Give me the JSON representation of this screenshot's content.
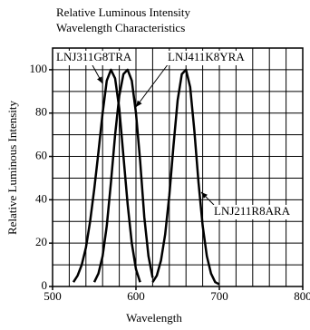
{
  "chart_data": {
    "type": "line",
    "title": "Relative Luminous Intensity",
    "subtitle": "Wavelength Characteristics",
    "x_label": "Wavelength",
    "y_label": "Relative Luminous Intensity",
    "xlim": [
      500,
      800
    ],
    "ylim": [
      0,
      110
    ],
    "xticks": [
      500,
      600,
      700,
      800
    ],
    "yticks": [
      0,
      20,
      40,
      60,
      80,
      100
    ],
    "xgrid": [
      500,
      520,
      540,
      560,
      580,
      600,
      620,
      640,
      660,
      680,
      700,
      720,
      740,
      760,
      780,
      800
    ],
    "ygrid": [
      0,
      10,
      20,
      30,
      40,
      50,
      60,
      70,
      80,
      90,
      100,
      110
    ],
    "grid": true,
    "series": [
      {
        "name": "LNJ311G8TRA",
        "color": "#000000",
        "x": [
          525,
          530,
          535,
          540,
          545,
          550,
          555,
          560,
          565,
          570,
          575,
          580,
          585,
          590,
          595,
          600,
          605
        ],
        "values": [
          2,
          5,
          10,
          18,
          30,
          45,
          62,
          80,
          95,
          100,
          96,
          82,
          60,
          38,
          20,
          8,
          2
        ]
      },
      {
        "name": "LNJ411K8YRA",
        "color": "#000000",
        "x": [
          550,
          555,
          560,
          565,
          570,
          575,
          580,
          585,
          590,
          595,
          600,
          605,
          610,
          615,
          620
        ],
        "values": [
          2,
          6,
          14,
          28,
          48,
          70,
          88,
          98,
          100,
          95,
          80,
          58,
          32,
          14,
          4
        ]
      },
      {
        "name": "LNJ211R8ARA",
        "color": "#000000",
        "x": [
          620,
          625,
          630,
          635,
          640,
          645,
          650,
          655,
          660,
          665,
          670,
          675,
          680,
          685,
          690,
          695,
          700
        ],
        "values": [
          2,
          5,
          12,
          24,
          42,
          65,
          86,
          98,
          100,
          92,
          72,
          48,
          28,
          14,
          6,
          2,
          1
        ]
      }
    ]
  }
}
